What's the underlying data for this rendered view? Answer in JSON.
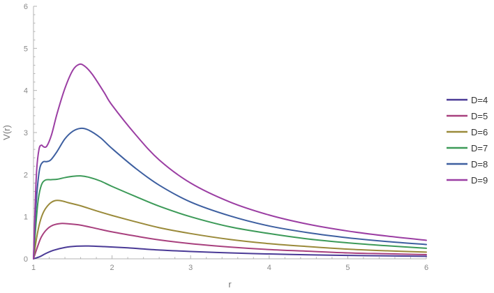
{
  "chart_data": {
    "type": "line",
    "title": "",
    "xlabel": "r",
    "ylabel": "V(r)",
    "xlim": [
      1,
      6
    ],
    "ylim": [
      0,
      6
    ],
    "x_ticks": [
      1,
      2,
      3,
      4,
      5,
      6
    ],
    "y_ticks": [
      0,
      1,
      2,
      3,
      4,
      5,
      6
    ],
    "grid": false,
    "legend_position": "right",
    "series": [
      {
        "name": "D=4",
        "color": "#4a3a96",
        "points": [
          [
            1,
            0
          ],
          [
            1.08,
            0.05
          ],
          [
            1.15,
            0.12
          ],
          [
            1.25,
            0.2
          ],
          [
            1.4,
            0.27
          ],
          [
            1.55,
            0.3
          ],
          [
            1.7,
            0.305
          ],
          [
            1.9,
            0.29
          ],
          [
            2.2,
            0.26
          ],
          [
            2.6,
            0.21
          ],
          [
            3,
            0.175
          ],
          [
            3.5,
            0.14
          ],
          [
            4,
            0.115
          ],
          [
            4.5,
            0.095
          ],
          [
            5,
            0.08
          ],
          [
            5.5,
            0.07
          ],
          [
            6,
            0.06
          ]
        ]
      },
      {
        "name": "D=5",
        "color": "#a8407e",
        "points": [
          [
            1,
            0
          ],
          [
            1.05,
            0.28
          ],
          [
            1.1,
            0.52
          ],
          [
            1.17,
            0.7
          ],
          [
            1.25,
            0.8
          ],
          [
            1.35,
            0.84
          ],
          [
            1.45,
            0.83
          ],
          [
            1.6,
            0.8
          ],
          [
            1.8,
            0.72
          ],
          [
            2,
            0.64
          ],
          [
            2.3,
            0.54
          ],
          [
            2.6,
            0.45
          ],
          [
            3,
            0.36
          ],
          [
            3.5,
            0.28
          ],
          [
            4,
            0.22
          ],
          [
            4.5,
            0.18
          ],
          [
            5,
            0.14
          ],
          [
            5.5,
            0.12
          ],
          [
            6,
            0.1
          ]
        ]
      },
      {
        "name": "D=6",
        "color": "#9a8a3a",
        "points": [
          [
            1,
            0
          ],
          [
            1.04,
            0.5
          ],
          [
            1.08,
            0.86
          ],
          [
            1.13,
            1.12
          ],
          [
            1.2,
            1.3
          ],
          [
            1.27,
            1.38
          ],
          [
            1.35,
            1.38
          ],
          [
            1.45,
            1.33
          ],
          [
            1.6,
            1.26
          ],
          [
            1.8,
            1.14
          ],
          [
            2,
            1.03
          ],
          [
            2.3,
            0.88
          ],
          [
            2.6,
            0.74
          ],
          [
            3,
            0.6
          ],
          [
            3.5,
            0.46
          ],
          [
            4,
            0.36
          ],
          [
            4.5,
            0.29
          ],
          [
            5,
            0.23
          ],
          [
            5.5,
            0.19
          ],
          [
            6,
            0.16
          ]
        ]
      },
      {
        "name": "D=7",
        "color": "#3c9a58",
        "points": [
          [
            1,
            0
          ],
          [
            1.03,
            0.8
          ],
          [
            1.06,
            1.4
          ],
          [
            1.1,
            1.75
          ],
          [
            1.15,
            1.87
          ],
          [
            1.22,
            1.88
          ],
          [
            1.3,
            1.89
          ],
          [
            1.4,
            1.93
          ],
          [
            1.5,
            1.96
          ],
          [
            1.6,
            1.97
          ],
          [
            1.7,
            1.94
          ],
          [
            1.85,
            1.85
          ],
          [
            2,
            1.72
          ],
          [
            2.3,
            1.48
          ],
          [
            2.6,
            1.25
          ],
          [
            3,
            1.0
          ],
          [
            3.5,
            0.76
          ],
          [
            4,
            0.6
          ],
          [
            4.5,
            0.47
          ],
          [
            5,
            0.38
          ],
          [
            5.5,
            0.31
          ],
          [
            6,
            0.25
          ]
        ]
      },
      {
        "name": "D=8",
        "color": "#3d5fa0",
        "points": [
          [
            1,
            0
          ],
          [
            1.02,
            0.9
          ],
          [
            1.05,
            1.7
          ],
          [
            1.08,
            2.15
          ],
          [
            1.12,
            2.3
          ],
          [
            1.17,
            2.31
          ],
          [
            1.22,
            2.35
          ],
          [
            1.3,
            2.55
          ],
          [
            1.4,
            2.85
          ],
          [
            1.5,
            3.03
          ],
          [
            1.6,
            3.1
          ],
          [
            1.7,
            3.06
          ],
          [
            1.85,
            2.88
          ],
          [
            2,
            2.62
          ],
          [
            2.3,
            2.15
          ],
          [
            2.6,
            1.75
          ],
          [
            3,
            1.35
          ],
          [
            3.5,
            1.02
          ],
          [
            4,
            0.78
          ],
          [
            4.5,
            0.62
          ],
          [
            5,
            0.5
          ],
          [
            5.5,
            0.41
          ],
          [
            6,
            0.34
          ]
        ]
      },
      {
        "name": "D=9",
        "color": "#9b3ea3",
        "points": [
          [
            1,
            0
          ],
          [
            1.02,
            1.2
          ],
          [
            1.04,
            2.1
          ],
          [
            1.07,
            2.6
          ],
          [
            1.1,
            2.7
          ],
          [
            1.13,
            2.66
          ],
          [
            1.17,
            2.68
          ],
          [
            1.23,
            2.95
          ],
          [
            1.3,
            3.45
          ],
          [
            1.4,
            4.05
          ],
          [
            1.5,
            4.48
          ],
          [
            1.58,
            4.62
          ],
          [
            1.65,
            4.58
          ],
          [
            1.75,
            4.38
          ],
          [
            1.9,
            3.95
          ],
          [
            2,
            3.65
          ],
          [
            2.3,
            2.95
          ],
          [
            2.6,
            2.35
          ],
          [
            3,
            1.8
          ],
          [
            3.5,
            1.35
          ],
          [
            4,
            1.04
          ],
          [
            4.5,
            0.82
          ],
          [
            5,
            0.66
          ],
          [
            5.5,
            0.54
          ],
          [
            6,
            0.44
          ]
        ]
      }
    ]
  }
}
